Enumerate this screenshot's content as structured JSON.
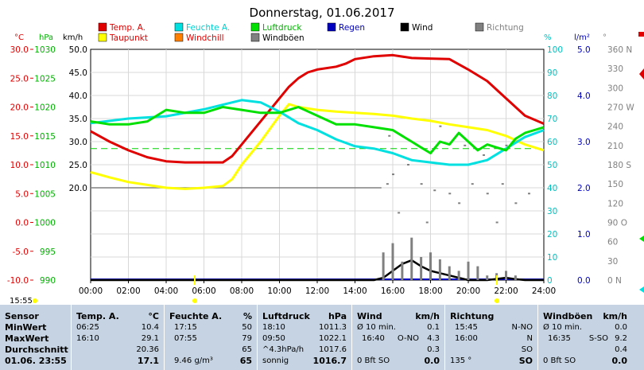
{
  "page": {
    "title": "Donnerstag, 01.06.2017",
    "current_time": "15:55"
  },
  "legend": [
    {
      "label": "Temp. A.",
      "color": "#e00000",
      "text_color": "#e00000"
    },
    {
      "label": "Feuchte A.",
      "color": "#00e0e0",
      "text_color": "#00d0d0"
    },
    {
      "label": "Luftdruck",
      "color": "#00e000",
      "text_color": "#00b000"
    },
    {
      "label": "Regen",
      "color": "#0000c0",
      "text_color": "#0000c0"
    },
    {
      "label": "Wind",
      "color": "#000000",
      "text_color": "#000000"
    },
    {
      "label": "Richtung",
      "color": "#808080",
      "text_color": "#808080"
    },
    {
      "label": "Taupunkt",
      "color": "#ffff00",
      "text_color": "#e00000"
    },
    {
      "label": "Windchill",
      "color": "#ff8000",
      "text_color": "#e00000"
    },
    {
      "label": "Windböen",
      "color": "#808080",
      "text_color": "#000000"
    }
  ],
  "axes": {
    "temp": {
      "unit": "°C",
      "color": "#e00000",
      "ticks": [
        "30.0",
        "25.0",
        "20.0",
        "15.0",
        "10.0",
        "5.0",
        "0.0",
        "-5.0",
        "-10.0"
      ]
    },
    "pressure": {
      "unit": "hPa",
      "color": "#00b000",
      "ticks": [
        "1030",
        "1025",
        "1020",
        "1015",
        "1010",
        "1005",
        "1000",
        "995",
        "990"
      ]
    },
    "wind": {
      "unit": "km/h",
      "color": "#000000",
      "ticks": [
        "50.0",
        "45.0",
        "40.0",
        "35.0",
        "30.0",
        "25.0",
        "20.0"
      ]
    },
    "humidity": {
      "unit": "%",
      "color": "#00c0c0",
      "ticks": [
        "100",
        "90",
        "80",
        "70",
        "60",
        "50",
        "40",
        "30",
        "20",
        "10",
        "0"
      ]
    },
    "rain": {
      "unit": "l/m²",
      "color": "#0000c0",
      "ticks": [
        "5.0",
        "4.0",
        "3.0",
        "2.0",
        "1.0",
        "0.0"
      ]
    },
    "direction": {
      "unit": "°",
      "color": "#808080",
      "ticks": [
        "360 N",
        "330",
        "300",
        "270 W",
        "240",
        "210",
        "180 S",
        "150",
        "120",
        "90 O",
        "60",
        "30",
        "0 N"
      ]
    },
    "x_ticks": [
      "00:00",
      "02:00",
      "04:00",
      "06:00",
      "08:00",
      "10:00",
      "12:00",
      "14:00",
      "16:00",
      "18:00",
      "20:00",
      "22:00",
      "24:00"
    ]
  },
  "chart_data": {
    "type": "line",
    "title": "Donnerstag, 01.06.2017",
    "x_unit": "hour of day",
    "xlim": [
      0,
      24
    ],
    "series": [
      {
        "name": "Temp. A.",
        "unit": "°C",
        "color": "#e00000",
        "x": [
          0,
          1,
          2,
          3,
          4,
          5,
          6,
          7,
          7.5,
          8,
          9,
          10,
          10.5,
          11,
          11.5,
          12,
          13,
          13.5,
          14,
          15,
          16,
          17,
          18,
          19,
          20,
          21,
          22,
          23,
          24
        ],
        "y": [
          15.8,
          14.0,
          12.5,
          11.3,
          10.6,
          10.4,
          10.4,
          10.4,
          11.5,
          13.5,
          17.5,
          21.5,
          23.5,
          25.0,
          26.0,
          26.5,
          27.0,
          27.5,
          28.3,
          28.8,
          29.0,
          28.5,
          28.4,
          28.3,
          26.5,
          24.5,
          21.5,
          18.5,
          17.1
        ]
      },
      {
        "name": "Taupunkt",
        "unit": "°C",
        "color": "#ffff00",
        "x": [
          0,
          1,
          2,
          3,
          4,
          5,
          6,
          7,
          7.5,
          8,
          9,
          10,
          10.5,
          11,
          12,
          13,
          14,
          15,
          16,
          17,
          18,
          19,
          20,
          21,
          22,
          23,
          24
        ],
        "y": [
          8.7,
          7.8,
          7.0,
          6.5,
          6.0,
          5.8,
          6.0,
          6.3,
          7.5,
          10.0,
          14.0,
          18.5,
          20.5,
          20.0,
          19.5,
          19.2,
          19.0,
          18.8,
          18.5,
          18.0,
          17.6,
          17.0,
          16.5,
          16.0,
          15.0,
          13.5,
          12.5
        ]
      },
      {
        "name": "Feuchte A.",
        "unit": "%",
        "color": "#00e0e0",
        "x": [
          0,
          2,
          4,
          6,
          7,
          8,
          9,
          10,
          11,
          12,
          13,
          14,
          15,
          16,
          17,
          18,
          19,
          20,
          21,
          22,
          23,
          24
        ],
        "y": [
          68,
          70,
          71,
          74,
          76,
          78,
          77,
          73,
          68,
          65,
          61,
          58,
          57,
          55,
          52,
          51,
          50,
          50,
          52,
          57,
          62,
          65
        ]
      },
      {
        "name": "Luftdruck",
        "unit": "hPa",
        "color": "#00e000",
        "x": [
          0,
          1,
          2,
          3,
          3.5,
          4,
          5,
          6,
          7,
          8,
          9,
          10,
          11,
          12,
          13,
          14,
          15,
          16,
          16.5,
          17,
          17.5,
          18,
          18.5,
          19,
          19.5,
          20,
          20.5,
          21,
          21.5,
          22,
          22.5,
          23,
          23.5,
          24
        ],
        "y": [
          1017.5,
          1017.0,
          1017.0,
          1017.5,
          1018.5,
          1019.5,
          1019.0,
          1019.0,
          1020.0,
          1019.5,
          1019.0,
          1019.0,
          1020.0,
          1018.5,
          1017.0,
          1017.0,
          1016.5,
          1016.0,
          1015.0,
          1014.0,
          1013.0,
          1012.0,
          1014.0,
          1013.5,
          1015.5,
          1014.0,
          1012.5,
          1013.5,
          1013.0,
          1012.5,
          1014.5,
          1015.5,
          1016.0,
          1016.5
        ]
      },
      {
        "name": "Wind",
        "unit": "km/h",
        "color": "#000000",
        "x": [
          0,
          15,
          15.5,
          16,
          16.5,
          17,
          17.5,
          18,
          18.5,
          19,
          19.5,
          20,
          21,
          22,
          22.5,
          23,
          24
        ],
        "y": [
          0,
          0,
          0.5,
          2.0,
          3.5,
          4.3,
          3.0,
          2.0,
          1.5,
          1.0,
          0.5,
          0,
          0,
          0.5,
          0.2,
          0,
          0
        ]
      },
      {
        "name": "Windböen",
        "unit": "km/h",
        "color": "#808080",
        "x": [
          15.5,
          16,
          16.5,
          17,
          17.5,
          18,
          18.5,
          19,
          19.5,
          20,
          20.5,
          21,
          21.5,
          22,
          22.5
        ],
        "y": [
          6.0,
          8.0,
          4.0,
          9.2,
          5.0,
          6.0,
          4.5,
          3.0,
          2.0,
          4.0,
          3.0,
          1.0,
          1.5,
          2.0,
          1.0
        ]
      },
      {
        "name": "Richtung",
        "unit": "°",
        "color": "#808080",
        "x": [
          15.7,
          16.0,
          16.8,
          17.5,
          18.2,
          19.0,
          19.5,
          20.2,
          21.0,
          21.8,
          22.5,
          23.2,
          15.8,
          18.5,
          20.8,
          22.0,
          16.3,
          17.8,
          19.8,
          21.5
        ],
        "y": [
          150,
          165,
          180,
          150,
          140,
          135,
          120,
          150,
          135,
          150,
          120,
          135,
          225,
          240,
          195,
          210,
          105,
          90,
          210,
          90
        ]
      }
    ],
    "ylim_temp": [
      -10,
      30
    ],
    "ylim_pressure": [
      990,
      1030
    ],
    "ylim_humidity": [
      0,
      100
    ],
    "ylim_wind": [
      0,
      50
    ],
    "ylim_rain": [
      0,
      5
    ],
    "ylim_direction": [
      0,
      360
    ],
    "reference_lines": [
      {
        "axis": "temp",
        "value": 12.8,
        "color": "#00d000",
        "style": "dashed"
      }
    ],
    "grid": true
  },
  "footer": {
    "sensor": {
      "header": "Sensor",
      "rows": [
        "MinWert",
        "MaxWert",
        "Durchschnitt",
        "01.06. 23:55"
      ]
    },
    "temp": {
      "header": "Temp. A.",
      "unit": "°C",
      "rows": [
        [
          "06:25",
          "10.4"
        ],
        [
          "16:10",
          "29.1"
        ],
        [
          "",
          "20.36"
        ],
        [
          "",
          "17.1"
        ]
      ]
    },
    "humidity": {
      "header": "Feuchte A.",
      "unit": "%",
      "rows": [
        [
          "17:15",
          "50"
        ],
        [
          "07:55",
          "79"
        ],
        [
          "",
          "65"
        ],
        [
          "9.46 g/m³",
          "65"
        ]
      ]
    },
    "pressure": {
      "header": "Luftdruck",
      "unit": "hPa",
      "rows": [
        [
          "18:10",
          "1011.3"
        ],
        [
          "09:50",
          "1022.1"
        ],
        [
          "^4.3hPa/h",
          "1017.6"
        ],
        [
          "sonnig",
          "1016.7"
        ]
      ]
    },
    "wind": {
      "header": "Wind",
      "unit": "km/h",
      "rows": [
        [
          "Ø 10 min.",
          "0.1"
        ],
        [
          "16:40",
          "O-NO",
          "4.3"
        ],
        [
          "",
          "0.3"
        ],
        [
          "0 Bft SO",
          "0.0"
        ]
      ]
    },
    "direction": {
      "header": "Richtung",
      "rows": [
        [
          "15:45",
          "N-NO"
        ],
        [
          "16:00",
          "N"
        ],
        [
          "",
          "SO"
        ],
        [
          "135 °",
          "SO"
        ]
      ]
    },
    "gusts": {
      "header": "Windböen",
      "unit": "km/h",
      "rows": [
        [
          "Ø 10 min.",
          "0.0"
        ],
        [
          "16:35",
          "S-SO",
          "9.2"
        ],
        [
          "",
          "0.4"
        ],
        [
          "0 Bft SO",
          "0.0"
        ]
      ]
    }
  }
}
